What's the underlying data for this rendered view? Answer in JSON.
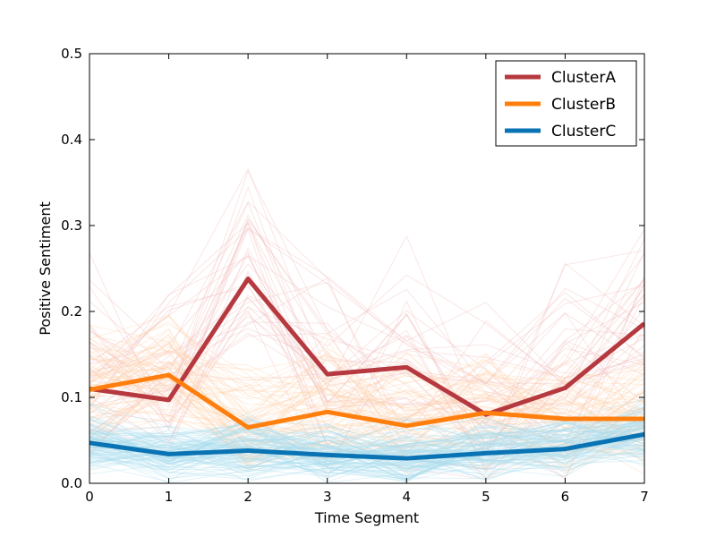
{
  "chart_data": {
    "type": "line",
    "title": "",
    "xlabel": "Time Segment",
    "ylabel": "Positive Sentiment",
    "xlim": [
      0,
      7
    ],
    "ylim": [
      0,
      0.5
    ],
    "x_ticks": [
      "0",
      "1",
      "2",
      "3",
      "4",
      "5",
      "6",
      "7"
    ],
    "y_ticks": [
      "0.0",
      "0.1",
      "0.2",
      "0.3",
      "0.4",
      "0.5"
    ],
    "grid": false,
    "legend_position": "top-right",
    "x": [
      0,
      1,
      2,
      3,
      4,
      5,
      6,
      7
    ],
    "series": [
      {
        "name": "ClusterA",
        "color": "#b5393f",
        "values": [
          0.11,
          0.097,
          0.238,
          0.127,
          0.135,
          0.08,
          0.111,
          0.186
        ]
      },
      {
        "name": "ClusterB",
        "color": "#ff7f0e",
        "values": [
          0.109,
          0.126,
          0.065,
          0.083,
          0.067,
          0.082,
          0.075,
          0.075
        ]
      },
      {
        "name": "ClusterC",
        "color": "#0a73b3",
        "values": [
          0.047,
          0.034,
          0.038,
          0.033,
          0.029,
          0.035,
          0.04,
          0.057
        ]
      }
    ],
    "background_traces": "many faint individual member series drawn behind each cluster mean"
  }
}
